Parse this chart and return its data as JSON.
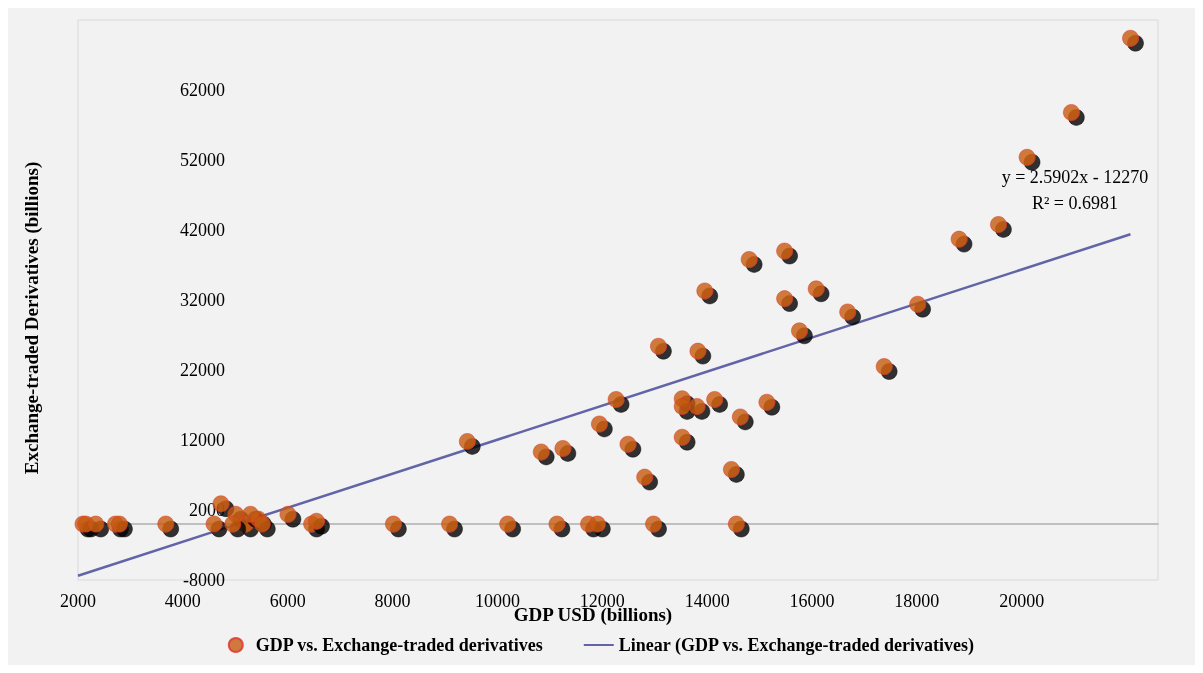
{
  "chart_data": {
    "type": "scatter",
    "xlabel": "GDP USD (billions)",
    "ylabel": "Exchange-traded Derivatives (billions)",
    "xlim": [
      2000,
      22600
    ],
    "xticks": [
      2000,
      4000,
      6000,
      8000,
      10000,
      12000,
      14000,
      16000,
      18000,
      20000
    ],
    "ylim": [
      -8000,
      72000
    ],
    "yticks": [
      -8000,
      2000,
      12000,
      22000,
      32000,
      42000,
      52000,
      62000
    ],
    "grid": false,
    "legend": "bottom",
    "annotations": [
      "y = 2.5902x - 12270",
      "R² = 0.6981"
    ],
    "series": [
      {
        "name": "GDP vs. Exchange-traded derivatives",
        "color": "#c55a11",
        "marker": "circle",
        "x": [
          2094,
          2150,
          2338,
          2714,
          2790,
          3673,
          4726,
          4594,
          5008,
          5195,
          5290,
          5440,
          5515,
          4951,
          6004,
          6455,
          6549,
          8015,
          9086,
          10195,
          11135,
          11737,
          11906,
          12977,
          14556,
          9425,
          10835,
          11248,
          11944,
          12489,
          12808,
          13523,
          14801,
          15477,
          13955,
          15477,
          16079,
          16680,
          15760,
          13071,
          13823,
          17376,
          12263,
          13523,
          13523,
          13805,
          14143,
          15139,
          14632,
          14462,
          22075,
          20947,
          20102,
          19556,
          18805,
          18015
        ],
        "values": [
          0,
          0,
          0,
          0,
          0,
          0,
          2900,
          0,
          1400,
          0,
          1400,
          700,
          0,
          0,
          1400,
          0,
          400,
          0,
          0,
          0,
          0,
          0,
          0,
          0,
          0,
          11800,
          10300,
          10800,
          14300,
          11400,
          6700,
          12400,
          37800,
          39000,
          33300,
          32200,
          33600,
          30300,
          27600,
          25400,
          24700,
          22500,
          17800,
          17900,
          16800,
          16800,
          17800,
          17400,
          15300,
          7800,
          69400,
          58800,
          52400,
          42800,
          40700,
          31400
        ]
      },
      {
        "name": "Linear (GDP vs. Exchange-traded derivatives)",
        "color": "#6264a7",
        "type": "line",
        "line_style": "solid",
        "marker": "none",
        "x": [
          2000,
          22075
        ],
        "values": [
          -7400,
          41400
        ]
      }
    ]
  }
}
